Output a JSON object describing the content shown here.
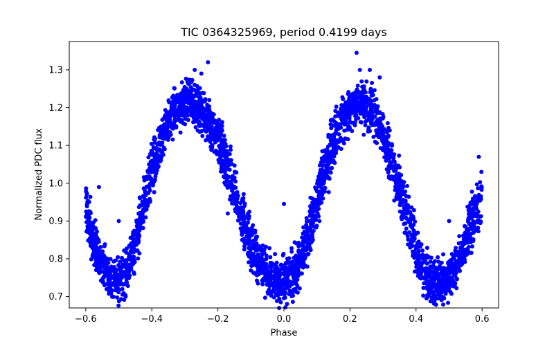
{
  "chart_data": {
    "type": "scatter",
    "title": "TIC 0364325969, period 0.4199 days",
    "xlabel": "Phase",
    "ylabel": "Normalized PDC flux",
    "xlim": [
      -0.65,
      0.65
    ],
    "ylim": [
      0.67,
      1.375
    ],
    "xticks": [
      -0.6,
      -0.4,
      -0.2,
      0.0,
      0.2,
      0.4,
      0.6
    ],
    "xtick_labels": [
      "−0.6",
      "−0.4",
      "−0.2",
      "0.0",
      "0.2",
      "0.4",
      "0.6"
    ],
    "yticks": [
      0.7,
      0.8,
      0.9,
      1.0,
      1.1,
      1.2,
      1.3
    ],
    "ytick_labels": [
      "0.7",
      "0.8",
      "0.9",
      "1.0",
      "1.1",
      "1.2",
      "1.3"
    ],
    "grid": false,
    "marker_color": "#0000ff",
    "series": [
      {
        "x": [
          -0.6,
          -0.58,
          -0.56,
          -0.54,
          -0.52,
          -0.5,
          -0.48,
          -0.46,
          -0.44,
          -0.42,
          -0.4,
          -0.38,
          -0.36,
          -0.34,
          -0.32,
          -0.3,
          -0.28,
          -0.26,
          -0.24,
          -0.22,
          -0.2,
          -0.18,
          -0.16,
          -0.14,
          -0.12,
          -0.1,
          -0.08,
          -0.06,
          -0.04,
          -0.02,
          0.0,
          0.02,
          0.04,
          0.06,
          0.08,
          0.1,
          0.12,
          0.14,
          0.16,
          0.18,
          0.2,
          0.22,
          0.24,
          0.26,
          0.28,
          0.3,
          0.32,
          0.34,
          0.36,
          0.38,
          0.4,
          0.42,
          0.44,
          0.46,
          0.48,
          0.5,
          0.52,
          0.54,
          0.56,
          0.58,
          0.6
        ],
        "y": [
          0.94,
          0.86,
          0.8,
          0.76,
          0.74,
          0.74,
          0.76,
          0.81,
          0.88,
          0.96,
          1.03,
          1.09,
          1.14,
          1.18,
          1.2,
          1.21,
          1.21,
          1.2,
          1.18,
          1.15,
          1.11,
          1.06,
          1.01,
          0.95,
          0.89,
          0.84,
          0.8,
          0.77,
          0.75,
          0.74,
          0.74,
          0.75,
          0.78,
          0.82,
          0.88,
          0.95,
          1.02,
          1.08,
          1.13,
          1.17,
          1.2,
          1.21,
          1.21,
          1.2,
          1.17,
          1.13,
          1.08,
          1.02,
          0.96,
          0.89,
          0.83,
          0.78,
          0.75,
          0.74,
          0.74,
          0.75,
          0.78,
          0.82,
          0.87,
          0.92,
          0.96
        ],
        "spread": [
          0.06,
          0.05,
          0.05,
          0.05,
          0.05,
          0.05,
          0.05,
          0.05,
          0.06,
          0.06,
          0.06,
          0.06,
          0.05,
          0.05,
          0.05,
          0.05,
          0.05,
          0.05,
          0.05,
          0.05,
          0.05,
          0.06,
          0.06,
          0.06,
          0.06,
          0.06,
          0.05,
          0.05,
          0.05,
          0.05,
          0.05,
          0.05,
          0.05,
          0.05,
          0.06,
          0.06,
          0.06,
          0.06,
          0.06,
          0.05,
          0.05,
          0.05,
          0.05,
          0.05,
          0.05,
          0.05,
          0.06,
          0.06,
          0.06,
          0.06,
          0.06,
          0.05,
          0.05,
          0.05,
          0.05,
          0.05,
          0.05,
          0.05,
          0.06,
          0.06,
          0.07
        ]
      }
    ],
    "outliers": [
      {
        "x": -0.27,
        "y": 1.3
      },
      {
        "x": -0.23,
        "y": 1.32
      },
      {
        "x": -0.25,
        "y": 1.29
      },
      {
        "x": 0.22,
        "y": 1.345
      },
      {
        "x": 0.23,
        "y": 1.3
      },
      {
        "x": 0.26,
        "y": 1.3
      },
      {
        "x": 0.29,
        "y": 1.28
      },
      {
        "x": 0.0,
        "y": 0.945
      },
      {
        "x": -0.17,
        "y": 0.92
      },
      {
        "x": -0.56,
        "y": 0.99
      },
      {
        "x": 0.59,
        "y": 1.07
      },
      {
        "x": -0.5,
        "y": 0.9
      },
      {
        "x": 0.5,
        "y": 0.9
      }
    ]
  }
}
